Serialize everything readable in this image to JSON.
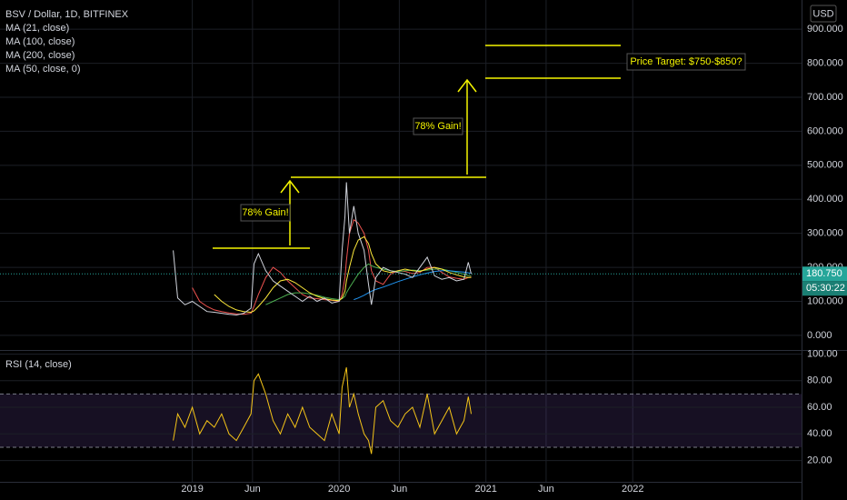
{
  "chart_data": [
    {
      "type": "line",
      "title": "BSV / Dollar, 1D, BITFINEX",
      "currency": "USD",
      "x": [
        2018.87,
        2018.9,
        2018.95,
        2019.0,
        2019.05,
        2019.1,
        2019.15,
        2019.2,
        2019.25,
        2019.3,
        2019.35,
        2019.4,
        2019.42,
        2019.45,
        2019.5,
        2019.55,
        2019.6,
        2019.65,
        2019.7,
        2019.75,
        2019.8,
        2019.85,
        2019.9,
        2019.95,
        2020.0,
        2020.02,
        2020.04,
        2020.05,
        2020.07,
        2020.1,
        2020.13,
        2020.17,
        2020.2,
        2020.22,
        2020.25,
        2020.3,
        2020.35,
        2020.4,
        2020.45,
        2020.5,
        2020.55,
        2020.6,
        2020.65,
        2020.7,
        2020.75,
        2020.8,
        2020.85,
        2020.88,
        2020.9
      ],
      "values": [
        250,
        110,
        90,
        100,
        85,
        70,
        68,
        65,
        62,
        60,
        65,
        80,
        210,
        240,
        190,
        160,
        145,
        130,
        115,
        100,
        115,
        100,
        110,
        95,
        100,
        250,
        350,
        450,
        300,
        380,
        300,
        250,
        150,
        90,
        170,
        200,
        190,
        185,
        180,
        170,
        200,
        230,
        175,
        165,
        170,
        160,
        165,
        215,
        180.75
      ],
      "color": "#d1d4dc",
      "series": [
        {
          "name": "MA (21, close)",
          "color": "#ef5350",
          "values": [
            null,
            null,
            null,
            140,
            100,
            85,
            75,
            70,
            66,
            63,
            62,
            65,
            85,
            120,
            170,
            200,
            185,
            160,
            140,
            120,
            110,
            108,
            105,
            103,
            100,
            120,
            170,
            220,
            300,
            340,
            330,
            300,
            250,
            190,
            160,
            150,
            180,
            190,
            188,
            182,
            185,
            200,
            200,
            185,
            172,
            168,
            165,
            170,
            172
          ]
        },
        {
          "name": "MA (100, close)",
          "color": "#4caf50",
          "values": [
            null,
            null,
            null,
            null,
            null,
            null,
            null,
            null,
            null,
            null,
            null,
            null,
            null,
            null,
            90,
            100,
            110,
            120,
            125,
            125,
            122,
            118,
            112,
            108,
            105,
            108,
            115,
            125,
            140,
            160,
            180,
            200,
            210,
            205,
            200,
            195,
            190,
            188,
            190,
            192,
            190,
            192,
            195,
            195,
            190,
            185,
            180,
            176,
            175
          ]
        },
        {
          "name": "MA (200, close)",
          "color": "#2196f3",
          "values": [
            null,
            null,
            null,
            null,
            null,
            null,
            null,
            null,
            null,
            null,
            null,
            null,
            null,
            null,
            null,
            null,
            null,
            null,
            null,
            null,
            null,
            null,
            null,
            null,
            null,
            null,
            null,
            null,
            null,
            105,
            110,
            118,
            125,
            130,
            135,
            142,
            150,
            158,
            165,
            172,
            178,
            183,
            188,
            190,
            190,
            188,
            186,
            184,
            183
          ]
        },
        {
          "name": "MA (50, close, 0)",
          "color": "#ffeb3b",
          "values": [
            null,
            null,
            null,
            null,
            null,
            null,
            120,
            100,
            85,
            75,
            70,
            68,
            72,
            85,
            110,
            140,
            160,
            165,
            155,
            140,
            125,
            115,
            108,
            104,
            102,
            110,
            130,
            160,
            200,
            250,
            280,
            290,
            270,
            240,
            210,
            190,
            185,
            190,
            195,
            190,
            188,
            195,
            200,
            195,
            185,
            178,
            172,
            170,
            170
          ]
        }
      ],
      "last_price": {
        "value": 180.75,
        "label": "180.750"
      },
      "countdown": "05:30:22",
      "annotations": [
        "78% Gain!",
        "78% Gain!",
        "Price Target: $750-$850?"
      ],
      "xlim": [
        2017.69,
        2023.15
      ],
      "ylim": [
        -43,
        986
      ],
      "yticks": [
        {
          "value": 0,
          "label": "0.000"
        },
        {
          "value": 100,
          "label": "100.000"
        },
        {
          "value": 200,
          "label": "200.000"
        },
        {
          "value": 300,
          "label": "300.000"
        },
        {
          "value": 400,
          "label": "400.000"
        },
        {
          "value": 500,
          "label": "500.000"
        },
        {
          "value": 600,
          "label": "600.000"
        },
        {
          "value": 700,
          "label": "700.000"
        },
        {
          "value": 800,
          "label": "800.000"
        },
        {
          "value": 900,
          "label": "900.000"
        }
      ],
      "grid": true
    },
    {
      "type": "line",
      "title": "RSI (14, close)",
      "x": [
        2018.87,
        2018.9,
        2018.95,
        2019.0,
        2019.05,
        2019.1,
        2019.15,
        2019.2,
        2019.25,
        2019.3,
        2019.35,
        2019.4,
        2019.42,
        2019.45,
        2019.5,
        2019.55,
        2019.6,
        2019.65,
        2019.7,
        2019.75,
        2019.8,
        2019.85,
        2019.9,
        2019.95,
        2020.0,
        2020.02,
        2020.04,
        2020.05,
        2020.07,
        2020.1,
        2020.13,
        2020.17,
        2020.2,
        2020.22,
        2020.25,
        2020.3,
        2020.35,
        2020.4,
        2020.45,
        2020.5,
        2020.55,
        2020.6,
        2020.65,
        2020.7,
        2020.75,
        2020.8,
        2020.85,
        2020.88,
        2020.9
      ],
      "values": [
        35,
        55,
        45,
        60,
        40,
        50,
        45,
        55,
        40,
        35,
        45,
        55,
        80,
        85,
        70,
        50,
        40,
        55,
        45,
        60,
        45,
        40,
        35,
        55,
        40,
        75,
        85,
        90,
        60,
        70,
        55,
        40,
        35,
        25,
        60,
        65,
        50,
        45,
        55,
        60,
        45,
        70,
        40,
        50,
        60,
        40,
        50,
        68,
        55
      ],
      "color": "#f5c518",
      "reference_lines": [
        30,
        70
      ],
      "xlim": [
        2017.69,
        2023.15
      ],
      "xticks": [
        {
          "value": 2019,
          "label": "2019"
        },
        {
          "value": 2019.41,
          "label": "Jun"
        },
        {
          "value": 2020,
          "label": "2020"
        },
        {
          "value": 2020.41,
          "label": "Jun"
        },
        {
          "value": 2021,
          "label": "2021"
        },
        {
          "value": 2021.41,
          "label": "Jun"
        },
        {
          "value": 2022,
          "label": "2022"
        }
      ],
      "ylim": [
        4,
        101
      ],
      "yticks": [
        {
          "value": 20,
          "label": "20.00"
        },
        {
          "value": 40,
          "label": "40.00"
        },
        {
          "value": 60,
          "label": "60.00"
        },
        {
          "value": 80,
          "label": "80.00"
        },
        {
          "value": 100,
          "label": "100.00"
        }
      ],
      "grid": true
    }
  ]
}
